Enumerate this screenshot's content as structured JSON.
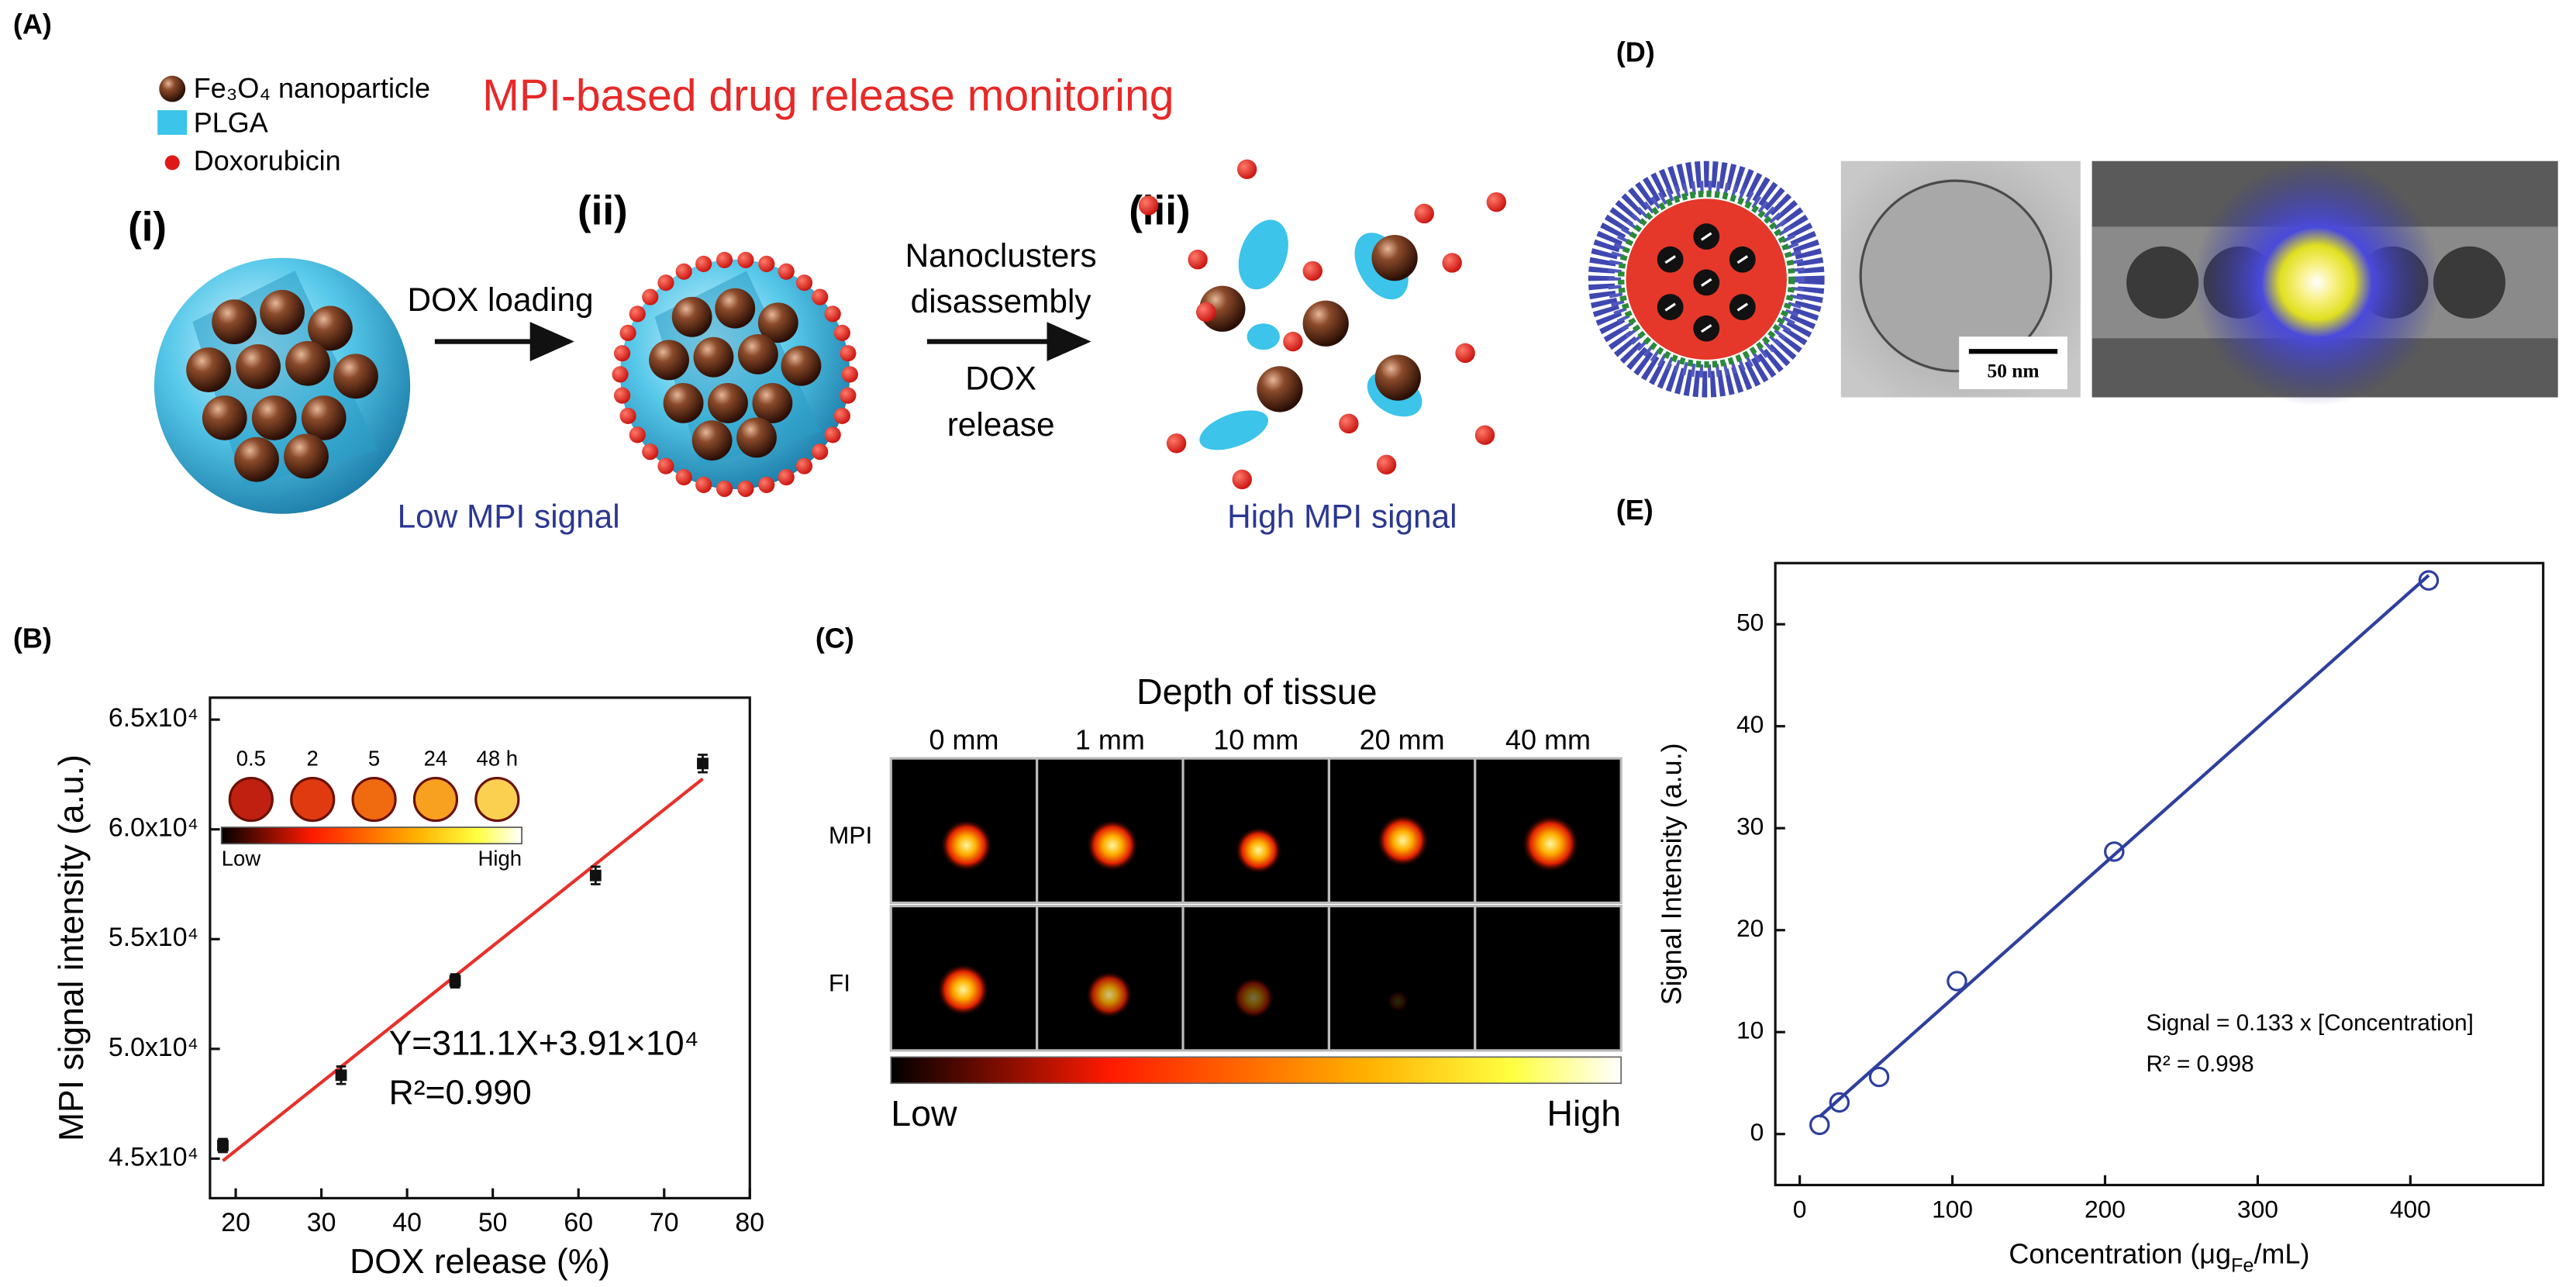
{
  "panels": {
    "A": {
      "label": "(A)",
      "title": "MPI-based drug release monitoring",
      "legend": [
        "Fe₃O₄ nanoparticle",
        "PLGA",
        "Doxorubicin"
      ],
      "steps": [
        "(i)",
        "(ii)",
        "(iii)"
      ],
      "arrow1": "DOX loading",
      "arrow2": [
        "Nanoclusters",
        "disassembly",
        "DOX",
        "release"
      ],
      "signals": [
        "Low MPI signal",
        "High MPI signal"
      ]
    },
    "C": {
      "label": "(C)",
      "title": "Depth of tissue",
      "columns": [
        "0 mm",
        "1 mm",
        "10 mm",
        "20 mm",
        "40 mm"
      ],
      "rows": [
        "MPI",
        "FI"
      ],
      "colorbar": [
        "Low",
        "High"
      ]
    },
    "D": {
      "label": "(D)",
      "scale_bar": "50 nm"
    },
    "B_inset": {
      "times": [
        "0.5",
        "2",
        "5",
        "24",
        "48 h"
      ],
      "colorbar": [
        "Low",
        "High"
      ]
    }
  },
  "chart_data": [
    {
      "type": "scatter",
      "panel": "(B)",
      "xlabel": "DOX release (%)",
      "ylabel": "MPI signal intensity (a.u.)",
      "xlim": [
        17,
        80
      ],
      "ylim": [
        43200,
        66000
      ],
      "xticks": [
        20,
        30,
        40,
        50,
        60,
        70,
        80
      ],
      "yticks": [
        {
          "value": 45000,
          "label": "4.5x10⁴"
        },
        {
          "value": 50000,
          "label": "5.0x10⁴"
        },
        {
          "value": 55000,
          "label": "5.5x10⁴"
        },
        {
          "value": 60000,
          "label": "6.0x10⁴"
        },
        {
          "value": 65000,
          "label": "6.5x10⁴"
        }
      ],
      "series": [
        {
          "name": null,
          "color": "#111111",
          "marker": "square",
          "x": [
            18.5,
            32.3,
            45.6,
            62,
            74.5
          ],
          "values": [
            45600,
            48800,
            53100,
            57900,
            63000
          ],
          "errors": [
            300,
            400,
            300,
            400,
            400
          ]
        }
      ],
      "fit": {
        "color": "#e8302a",
        "x": [
          18.5,
          74.5
        ],
        "y": [
          44900,
          62300
        ]
      },
      "annotations": [
        "Y=311.1X+3.91×10⁴",
        "R²=0.990"
      ]
    },
    {
      "type": "scatter",
      "panel": "(E)",
      "xlabel": [
        "Concentration (μg",
        "Fe",
        "/mL)"
      ],
      "ylabel": "Signal Intensity (a.u.)",
      "xlim": [
        -16,
        487
      ],
      "ylim": [
        -5,
        56
      ],
      "xticks": [
        0,
        100,
        200,
        300,
        400
      ],
      "yticks": [
        0,
        10,
        20,
        30,
        40,
        50
      ],
      "series": [
        {
          "name": null,
          "color": "#2e3f9e",
          "marker": "open-circle",
          "x": [
            13,
            26,
            52,
            103,
            206,
            412
          ],
          "values": [
            0.9,
            3.1,
            5.6,
            15,
            27.7,
            54.3
          ]
        }
      ],
      "fit": {
        "color": "#2e3f9e",
        "x": [
          13,
          412
        ],
        "y": [
          1.7,
          54.8
        ]
      },
      "annotations": [
        "Signal = 0.133 x [Concentration]",
        "R² = 0.998"
      ]
    }
  ]
}
